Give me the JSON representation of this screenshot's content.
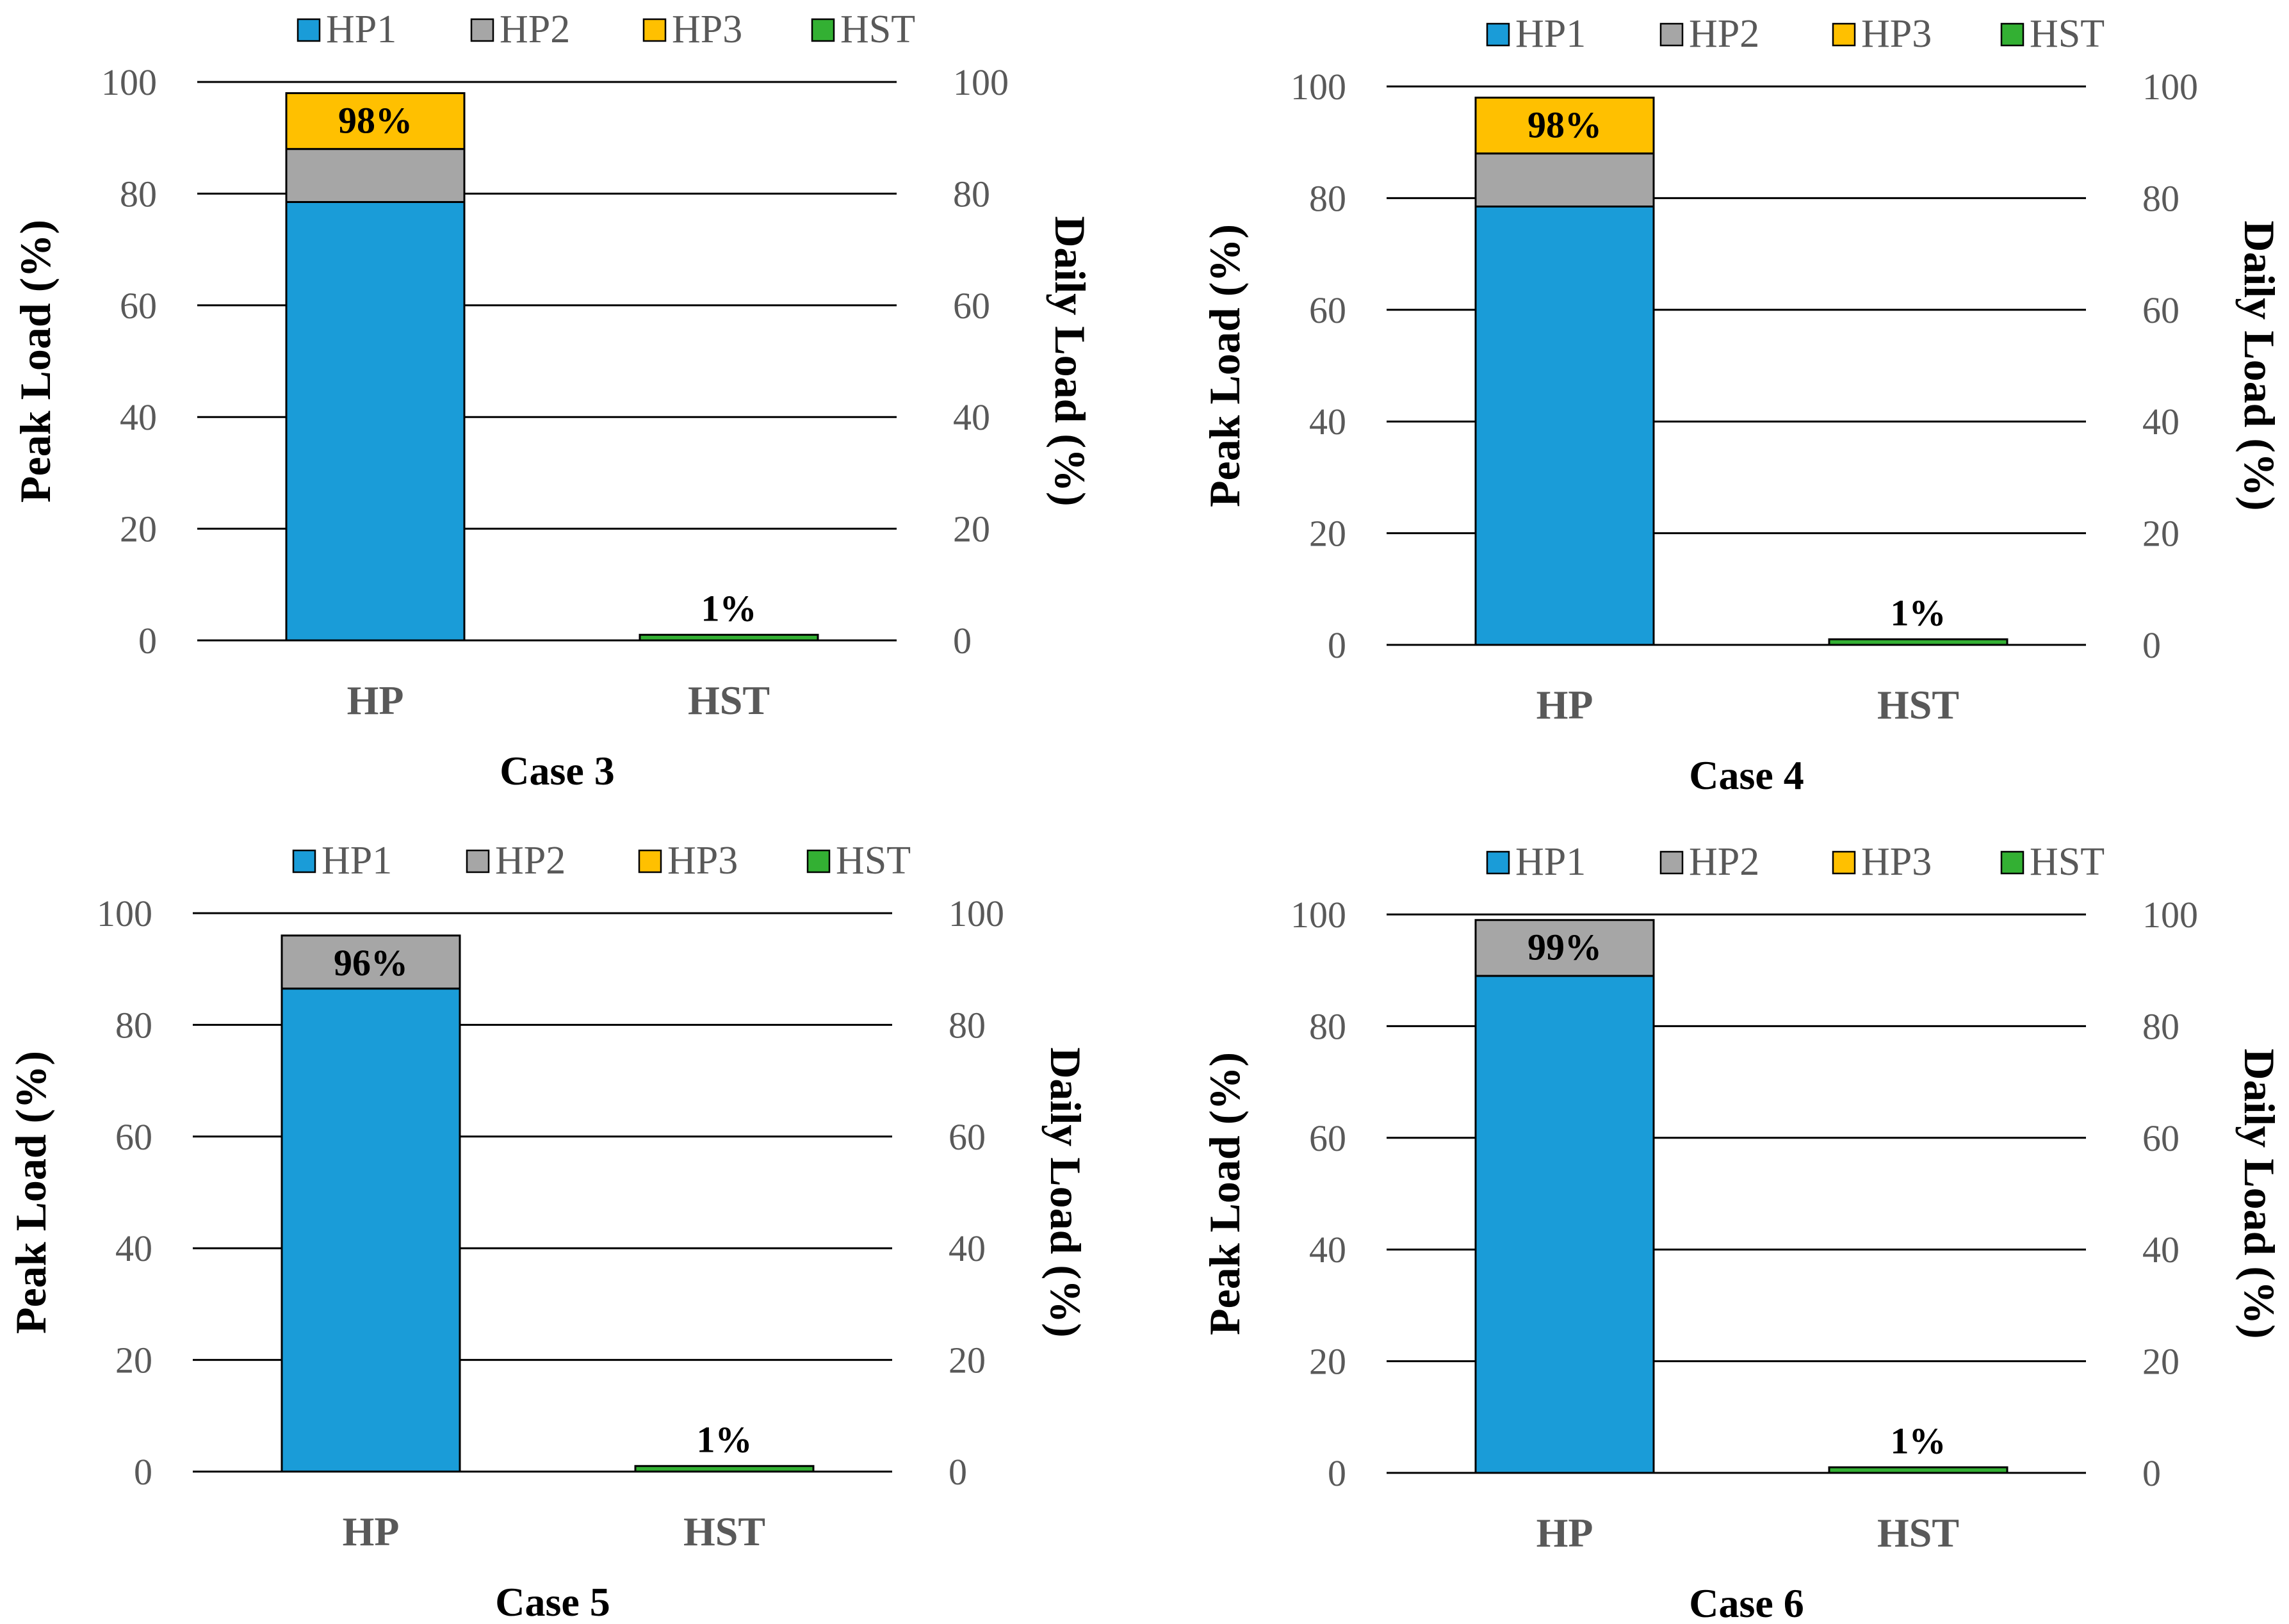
{
  "chart_data": [
    {
      "type": "bar",
      "stacked": true,
      "title": "Case 3",
      "categories": [
        "HP",
        "HST"
      ],
      "ylabel": "Peak Load (%)",
      "y2label": "Daily Load (%)",
      "ylim": [
        0,
        100
      ],
      "y2lim": [
        0,
        100
      ],
      "yticks": [
        "0",
        "20",
        "40",
        "60",
        "80",
        "100"
      ],
      "grid": true,
      "legend": "top",
      "series": [
        {
          "name": "HP1",
          "color": "#1a9cd8",
          "values": [
            78.5,
            0
          ]
        },
        {
          "name": "HP2",
          "color": "#a6a6a6",
          "values": [
            9.5,
            0
          ]
        },
        {
          "name": "HP3",
          "color": "#ffc000",
          "values": [
            10,
            0
          ]
        },
        {
          "name": "HST",
          "color": "#33b033",
          "values": [
            0,
            1
          ]
        }
      ],
      "daily_load_frames": [
        98,
        1
      ],
      "data_labels": [
        "98%",
        "1%"
      ]
    },
    {
      "type": "bar",
      "stacked": true,
      "title": "Case 4",
      "categories": [
        "HP",
        "HST"
      ],
      "ylabel": "Peak Load (%)",
      "y2label": "Daily Load (%)",
      "ylim": [
        0,
        100
      ],
      "y2lim": [
        0,
        100
      ],
      "yticks": [
        "0",
        "20",
        "40",
        "60",
        "80",
        "100"
      ],
      "grid": true,
      "legend": "top",
      "series": [
        {
          "name": "HP1",
          "color": "#1a9cd8",
          "values": [
            78.5,
            0
          ]
        },
        {
          "name": "HP2",
          "color": "#a6a6a6",
          "values": [
            9.5,
            0
          ]
        },
        {
          "name": "HP3",
          "color": "#ffc000",
          "values": [
            10,
            0
          ]
        },
        {
          "name": "HST",
          "color": "#33b033",
          "values": [
            0,
            1
          ]
        }
      ],
      "daily_load_frames": [
        98,
        1
      ],
      "data_labels": [
        "98%",
        "1%"
      ]
    },
    {
      "type": "bar",
      "stacked": true,
      "title": "Case 5",
      "categories": [
        "HP",
        "HST"
      ],
      "ylabel": "Peak Load (%)",
      "y2label": "Daily Load (%)",
      "ylim": [
        0,
        100
      ],
      "y2lim": [
        0,
        100
      ],
      "yticks": [
        "0",
        "20",
        "40",
        "60",
        "80",
        "100"
      ],
      "grid": true,
      "legend": "top",
      "series": [
        {
          "name": "HP1",
          "color": "#1a9cd8",
          "values": [
            86.5,
            0
          ]
        },
        {
          "name": "HP2",
          "color": "#a6a6a6",
          "values": [
            9.5,
            0
          ]
        },
        {
          "name": "HP3",
          "color": "#ffc000",
          "values": [
            0,
            0
          ]
        },
        {
          "name": "HST",
          "color": "#33b033",
          "values": [
            0,
            1
          ]
        }
      ],
      "daily_load_frames": [
        96,
        1
      ],
      "data_labels": [
        "96%",
        "1%"
      ]
    },
    {
      "type": "bar",
      "stacked": true,
      "title": "Case 6",
      "categories": [
        "HP",
        "HST"
      ],
      "ylabel": "Peak Load (%)",
      "y2label": "Daily Load (%)",
      "ylim": [
        0,
        100
      ],
      "y2lim": [
        0,
        100
      ],
      "yticks": [
        "0",
        "20",
        "40",
        "60",
        "80",
        "100"
      ],
      "grid": true,
      "legend": "top",
      "series": [
        {
          "name": "HP1",
          "color": "#1a9cd8",
          "values": [
            89,
            0
          ]
        },
        {
          "name": "HP2",
          "color": "#a6a6a6",
          "values": [
            10,
            0
          ]
        },
        {
          "name": "HP3",
          "color": "#ffc000",
          "values": [
            0,
            0
          ]
        },
        {
          "name": "HST",
          "color": "#33b033",
          "values": [
            0,
            1
          ]
        }
      ],
      "daily_load_frames": [
        99,
        1
      ],
      "data_labels": [
        "99%",
        "1%"
      ]
    }
  ]
}
